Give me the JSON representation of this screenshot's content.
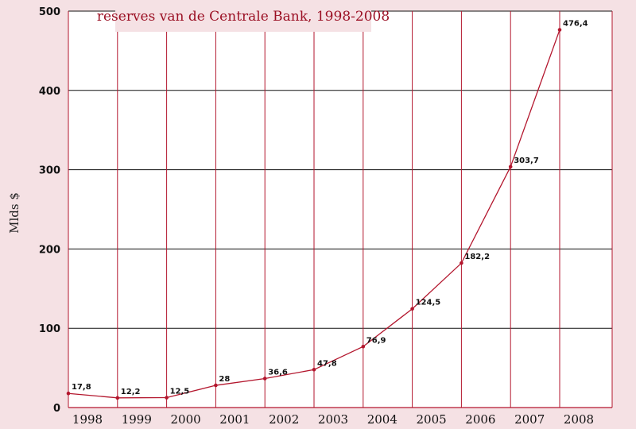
{
  "chart_data": {
    "type": "line",
    "title": "reserves van de Centrale Bank, 1998-2008",
    "xlabel": "",
    "ylabel": "Mlds $",
    "categories": [
      "1998",
      "1999",
      "2000",
      "2001",
      "2002",
      "2003",
      "2004",
      "2005",
      "2006",
      "2007",
      "2008"
    ],
    "values": [
      17.8,
      12.2,
      12.5,
      28,
      36.6,
      47.8,
      76.9,
      124.5,
      182.2,
      303.7,
      476.4
    ],
    "data_labels": [
      "17,8",
      "12,2",
      "12,5",
      "28",
      "36,6",
      "47,8",
      "76,9",
      "124,5",
      "182,2",
      "303,7",
      "476,4"
    ],
    "yticks": [
      "0",
      "100",
      "200",
      "300",
      "400",
      "500"
    ],
    "ylim": [
      0,
      500
    ],
    "grid": true,
    "legend": "none",
    "colors": {
      "line": "#b3162d",
      "grid_vertical": "#b3162d",
      "grid_horizontal": "#111111",
      "plot_background": "#ffffff",
      "page_background": "#f5e1e4",
      "title": "#9b1024"
    }
  }
}
